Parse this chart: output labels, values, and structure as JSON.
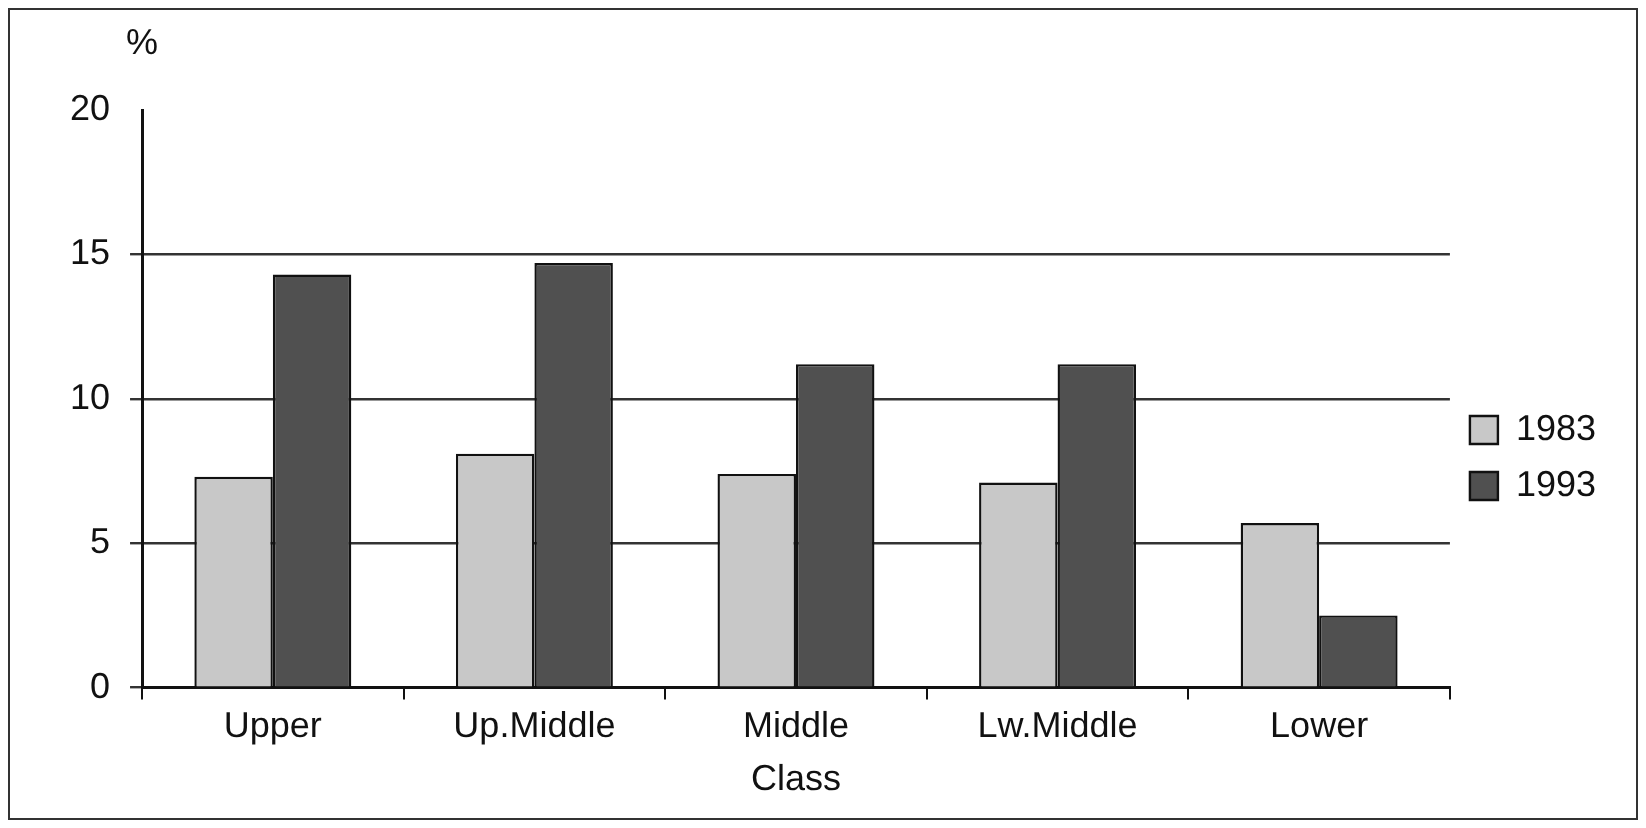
{
  "chart_data": {
    "type": "bar",
    "xlabel": "Class",
    "ylabel": "%",
    "categories": [
      "Upper",
      "Up.Middle",
      "Middle",
      "Lw.Middle",
      "Lower"
    ],
    "series": [
      {
        "name": "1983",
        "color": "#c8c8c8",
        "values": [
          7.3,
          8.1,
          7.4,
          7.1,
          5.7
        ]
      },
      {
        "name": "1993",
        "color": "#505050",
        "values": [
          14.3,
          14.7,
          11.2,
          11.2,
          2.5
        ]
      }
    ],
    "ylim": [
      0,
      20
    ],
    "yticks": [
      0,
      5,
      10,
      15,
      20
    ],
    "grid": "y",
    "legend": "right"
  }
}
